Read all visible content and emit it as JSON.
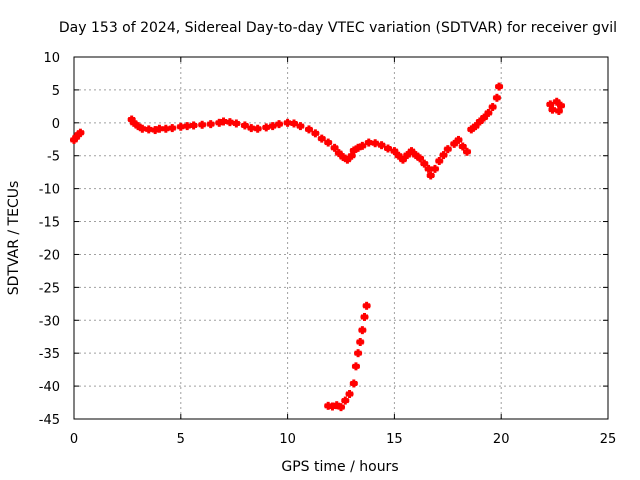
{
  "chart_data": {
    "type": "scatter",
    "title": "Day 153 of 2024, Sidereal Day-to-day VTEC variation (SDTVAR) for receiver gvil",
    "xlabel": "GPS time / hours",
    "ylabel": "SDTVAR / TECUs",
    "xlim": [
      0,
      25
    ],
    "ylim": [
      -45,
      10
    ],
    "xticks": [
      "0",
      "5",
      "10",
      "15",
      "20",
      "25"
    ],
    "yticks": [
      "10",
      "5",
      "0",
      "-5",
      "-10",
      "-15",
      "-20",
      "-25",
      "-30",
      "-35",
      "-40",
      "-45"
    ],
    "grid": true,
    "marker_color": "#ff0000",
    "series": [
      {
        "points": [
          [
            0.0,
            -2.6
          ],
          [
            0.1,
            -2.2
          ],
          [
            0.2,
            -1.8
          ],
          [
            0.3,
            -1.5
          ],
          [
            2.7,
            0.5
          ],
          [
            2.8,
            0.0
          ],
          [
            3.0,
            -0.5
          ],
          [
            3.2,
            -0.9
          ],
          [
            3.5,
            -1.0
          ],
          [
            3.8,
            -1.1
          ],
          [
            4.0,
            -0.9
          ],
          [
            4.3,
            -0.9
          ],
          [
            4.6,
            -0.8
          ],
          [
            5.0,
            -0.6
          ],
          [
            5.3,
            -0.5
          ],
          [
            5.6,
            -0.4
          ],
          [
            6.0,
            -0.3
          ],
          [
            6.4,
            -0.2
          ],
          [
            6.8,
            0.0
          ],
          [
            7.0,
            0.2
          ],
          [
            7.3,
            0.1
          ],
          [
            7.6,
            -0.1
          ],
          [
            8.0,
            -0.4
          ],
          [
            8.3,
            -0.8
          ],
          [
            8.6,
            -0.9
          ],
          [
            9.0,
            -0.7
          ],
          [
            9.3,
            -0.5
          ],
          [
            9.6,
            -0.2
          ],
          [
            10.0,
            0.0
          ],
          [
            10.3,
            -0.1
          ],
          [
            10.6,
            -0.5
          ],
          [
            11.0,
            -1.0
          ],
          [
            11.3,
            -1.6
          ],
          [
            11.6,
            -2.4
          ],
          [
            11.9,
            -3.0
          ],
          [
            12.2,
            -3.8
          ],
          [
            12.4,
            -4.6
          ],
          [
            12.6,
            -5.2
          ],
          [
            12.8,
            -5.6
          ],
          [
            13.0,
            -5.0
          ],
          [
            13.1,
            -4.2
          ],
          [
            13.3,
            -3.8
          ],
          [
            13.5,
            -3.5
          ],
          [
            13.8,
            -3.0
          ],
          [
            14.1,
            -3.1
          ],
          [
            14.4,
            -3.4
          ],
          [
            14.7,
            -3.9
          ],
          [
            15.0,
            -4.3
          ],
          [
            15.2,
            -5.0
          ],
          [
            15.4,
            -5.6
          ],
          [
            15.6,
            -4.9
          ],
          [
            15.8,
            -4.3
          ],
          [
            16.0,
            -4.9
          ],
          [
            16.2,
            -5.4
          ],
          [
            16.4,
            -6.2
          ],
          [
            16.6,
            -7.0
          ],
          [
            16.7,
            -8.0
          ],
          [
            16.9,
            -7.0
          ],
          [
            17.1,
            -5.8
          ],
          [
            17.3,
            -4.9
          ],
          [
            17.5,
            -4.0
          ],
          [
            17.8,
            -3.2
          ],
          [
            18.0,
            -2.6
          ],
          [
            18.2,
            -3.6
          ],
          [
            18.4,
            -4.4
          ],
          [
            18.6,
            -1.0
          ],
          [
            18.8,
            -0.5
          ],
          [
            19.0,
            0.2
          ],
          [
            19.2,
            0.8
          ],
          [
            19.4,
            1.5
          ],
          [
            19.6,
            2.4
          ],
          [
            19.8,
            3.8
          ],
          [
            19.9,
            5.5
          ],
          [
            11.9,
            -43.0
          ],
          [
            12.1,
            -43.1
          ],
          [
            12.3,
            -42.9
          ],
          [
            12.5,
            -43.2
          ],
          [
            12.7,
            -42.2
          ],
          [
            12.9,
            -41.2
          ],
          [
            13.1,
            -39.6
          ],
          [
            13.2,
            -37.0
          ],
          [
            13.3,
            -35.0
          ],
          [
            13.4,
            -33.3
          ],
          [
            13.5,
            -31.5
          ],
          [
            13.6,
            -29.5
          ],
          [
            13.7,
            -27.8
          ],
          [
            22.3,
            2.8
          ],
          [
            22.4,
            2.0
          ],
          [
            22.6,
            3.2
          ],
          [
            22.7,
            1.8
          ],
          [
            22.8,
            2.6
          ]
        ]
      }
    ]
  }
}
